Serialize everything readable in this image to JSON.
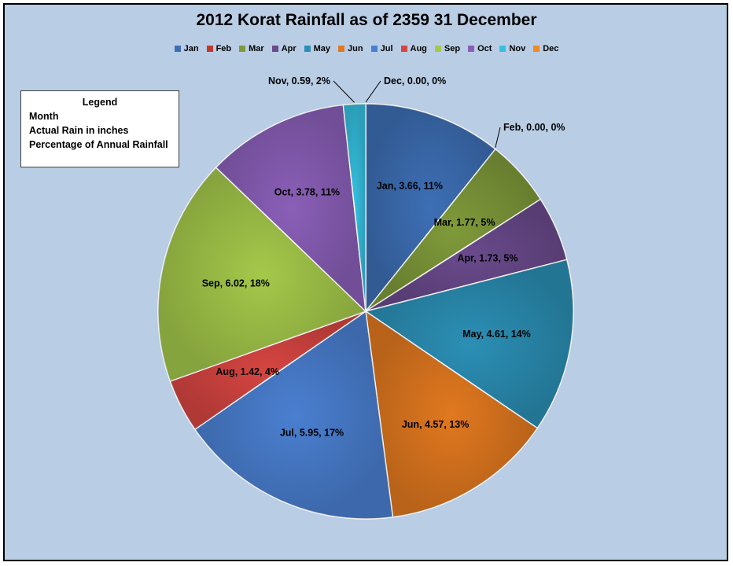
{
  "chart_data": {
    "type": "pie",
    "title": "2012 Korat Rainfall as of 2359 31 December",
    "legend_placement": "top",
    "slices": [
      {
        "name": "Jan",
        "value": 3.66,
        "percent": "11%",
        "label": "Jan, 3.66, 11%",
        "color": "#3d6fb5"
      },
      {
        "name": "Feb",
        "value": 0.0,
        "percent": "0%",
        "label": "Feb, 0.00, 0%",
        "color": "#c0392b"
      },
      {
        "name": "Mar",
        "value": 1.77,
        "percent": "5%",
        "label": "Mar, 1.77, 5%",
        "color": "#7f9a3a"
      },
      {
        "name": "Apr",
        "value": 1.73,
        "percent": "5%",
        "label": "Apr, 1.73, 5%",
        "color": "#6a4a8c"
      },
      {
        "name": "May",
        "value": 4.61,
        "percent": "14%",
        "label": "May, 4.61, 14%",
        "color": "#2b8fb5"
      },
      {
        "name": "Jun",
        "value": 4.57,
        "percent": "13%",
        "label": "Jun, 4.57, 13%",
        "color": "#e0781f"
      },
      {
        "name": "Jul",
        "value": 5.95,
        "percent": "17%",
        "label": "Jul, 5.95, 17%",
        "color": "#4a7fd0"
      },
      {
        "name": "Aug",
        "value": 1.42,
        "percent": "4%",
        "label": "Aug, 1.42, 4%",
        "color": "#d64541"
      },
      {
        "name": "Sep",
        "value": 6.02,
        "percent": "18%",
        "label": "Sep, 6.02, 18%",
        "color": "#a4c84a"
      },
      {
        "name": "Oct",
        "value": 3.78,
        "percent": "11%",
        "label": "Oct, 3.78, 11%",
        "color": "#8a5fb8"
      },
      {
        "name": "Nov",
        "value": 0.59,
        "percent": "2%",
        "label": "Nov, 0.59, 2%",
        "color": "#35c0e0"
      },
      {
        "name": "Dec",
        "value": 0.0,
        "percent": "0%",
        "label": "Dec, 0.00, 0%",
        "color": "#f08a24"
      }
    ]
  },
  "key_box": {
    "title": "Legend",
    "lines": [
      "Month",
      "Actual Rain in inches",
      "Percentage of Annual Rainfall"
    ]
  }
}
